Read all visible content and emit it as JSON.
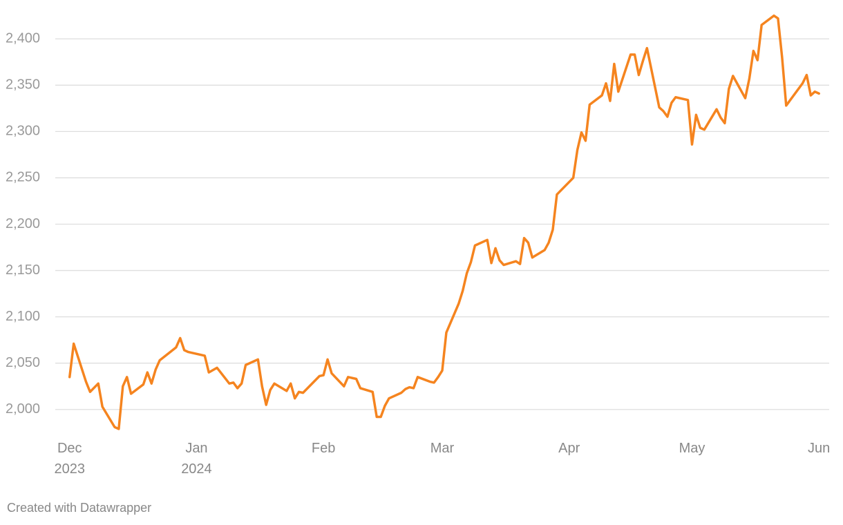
{
  "chart_data": {
    "type": "line",
    "color": "#f5841f",
    "grid": true,
    "footer": "Created with Datawrapper",
    "xlim": [
      -3.5,
      185.5
    ],
    "xticks": [
      {
        "value": 0,
        "label": "Dec\n2023"
      },
      {
        "value": 31,
        "label": "Jan\n2024"
      },
      {
        "value": 62,
        "label": "Feb"
      },
      {
        "value": 91,
        "label": "Mar"
      },
      {
        "value": 122,
        "label": "Apr"
      },
      {
        "value": 152,
        "label": "May"
      },
      {
        "value": 183,
        "label": "Jun"
      }
    ],
    "ylim": [
      1970,
      2430
    ],
    "yticks": [
      {
        "value": 2000,
        "label": "2,000"
      },
      {
        "value": 2050,
        "label": "2,050"
      },
      {
        "value": 2100,
        "label": "2,100"
      },
      {
        "value": 2150,
        "label": "2,150"
      },
      {
        "value": 2200,
        "label": "2,200"
      },
      {
        "value": 2250,
        "label": "2,250"
      },
      {
        "value": 2300,
        "label": "2,300"
      },
      {
        "value": 2350,
        "label": "2,350"
      },
      {
        "value": 2400,
        "label": "2,400"
      }
    ],
    "x": [
      0,
      1,
      4,
      5,
      7,
      8,
      11,
      12,
      13,
      14,
      15,
      18,
      19,
      20,
      21,
      22,
      26,
      27,
      28,
      29,
      33,
      34,
      36,
      39,
      40,
      41,
      42,
      43,
      46,
      47,
      48,
      49,
      50,
      53,
      54,
      55,
      56,
      57,
      61,
      62,
      63,
      64,
      67,
      68,
      70,
      71,
      74,
      75,
      76,
      77,
      78,
      81,
      82,
      83,
      84,
      85,
      88,
      89,
      90,
      91,
      92,
      95,
      96,
      97,
      98,
      99,
      102,
      103,
      104,
      105,
      106,
      109,
      110,
      111,
      112,
      113,
      116,
      117,
      118,
      119,
      123,
      124,
      125,
      126,
      127,
      130,
      131,
      132,
      133,
      134,
      137,
      138,
      139,
      140,
      141,
      144,
      145,
      146,
      147,
      148,
      151,
      152,
      153,
      154,
      155,
      158,
      159,
      160,
      161,
      162,
      165,
      166,
      167,
      168,
      169,
      172,
      173,
      174,
      175,
      179,
      180,
      181,
      182,
      183
    ],
    "values": [
      2035,
      2071,
      2030,
      2019,
      2028,
      2003,
      1981,
      1979,
      2025,
      2035,
      2017,
      2027,
      2040,
      2028,
      2043,
      2053,
      2067,
      2077,
      2064,
      2062,
      2058,
      2040,
      2045,
      2028,
      2029,
      2023,
      2028,
      2048,
      2054,
      2025,
      2005,
      2021,
      2028,
      2020,
      2028,
      2012,
      2019,
      2018,
      2036,
      2037,
      2054,
      2039,
      2025,
      2035,
      2033,
      2023,
      2019,
      1992,
      1992,
      2004,
      2012,
      2018,
      2022,
      2024,
      2023,
      2035,
      2030,
      2029,
      2035,
      2042,
      2083,
      2114,
      2128,
      2147,
      2159,
      2177,
      2183,
      2158,
      2174,
      2161,
      2156,
      2160,
      2157,
      2185,
      2180,
      2164,
      2172,
      2180,
      2194,
      2232,
      2250,
      2280,
      2299,
      2290,
      2329,
      2339,
      2352,
      2333,
      2373,
      2343,
      2383,
      2383,
      2361,
      2376,
      2390,
      2326,
      2322,
      2316,
      2331,
      2337,
      2334,
      2286,
      2318,
      2304,
      2302,
      2324,
      2315,
      2309,
      2346,
      2360,
      2336,
      2357,
      2387,
      2377,
      2415,
      2425,
      2422,
      2380,
      2328,
      2352,
      2361,
      2339,
      2343,
      2341
    ]
  }
}
